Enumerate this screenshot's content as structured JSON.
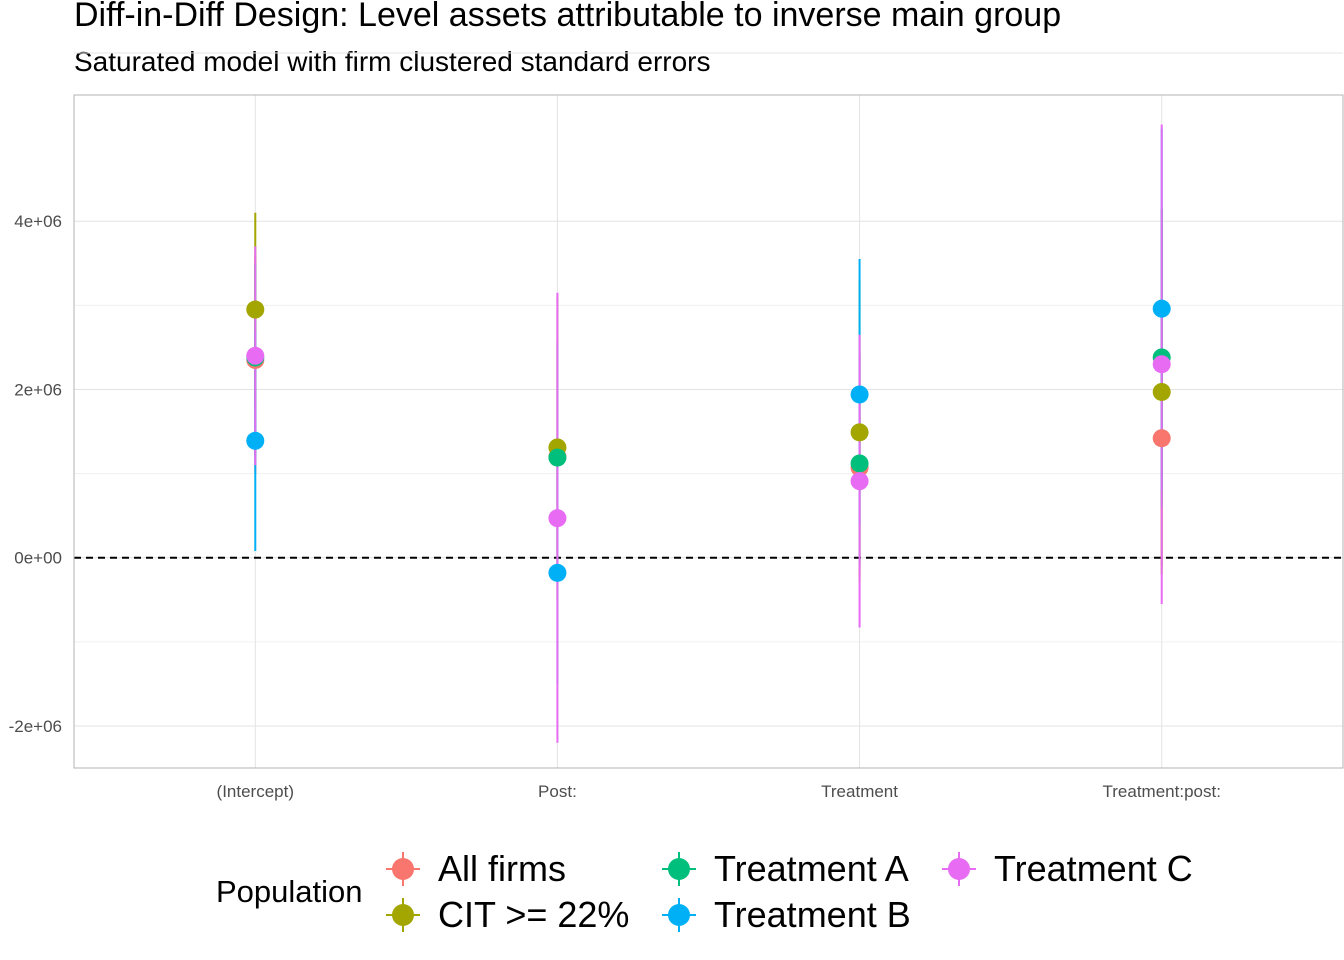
{
  "title": "Diff-in-Diff Design: Level assets attributable to inverse main group",
  "subtitle": "Saturated model with firm clustered standard errors",
  "legend": {
    "title": "Population",
    "items": [
      {
        "label": "All firms",
        "color": "#F8766D"
      },
      {
        "label": "CIT >= 22%",
        "color": "#A3A500"
      },
      {
        "label": "Treatment A",
        "color": "#00BF7D"
      },
      {
        "label": "Treatment B",
        "color": "#00B0F6"
      },
      {
        "label": "Treatment C",
        "color": "#E76BF3"
      }
    ]
  },
  "chart_data": {
    "type": "scatter",
    "title": "Diff-in-Diff Design: Level assets attributable to inverse main group",
    "subtitle": "Saturated model with firm clustered standard errors",
    "xlabel": "",
    "ylabel": "",
    "categories": [
      "(Intercept)",
      "Post:",
      "Treatment",
      "Treatment:post:"
    ],
    "ylim": [
      -2500000,
      5500000
    ],
    "yticks": [
      -2000000,
      0,
      2000000,
      4000000
    ],
    "ytick_labels": [
      "-2e+06",
      "0e+00",
      "2e+06",
      "4e+06"
    ],
    "reference_line": {
      "y": 0,
      "style": "dashed"
    },
    "grid": true,
    "legend_position": "bottom",
    "series": [
      {
        "name": "All firms",
        "color": "#F8766D",
        "estimate": [
          2350000,
          1200000,
          1070000,
          1420000
        ],
        "lower": [
          1000000,
          -150000,
          -200000,
          -100000
        ],
        "upper": [
          3600000,
          2600000,
          2450000,
          2900000
        ]
      },
      {
        "name": "CIT >= 22%",
        "color": "#A3A500",
        "estimate": [
          2950000,
          1310000,
          1490000,
          1970000
        ],
        "lower": [
          1800000,
          -500000,
          -300000,
          -200000
        ],
        "upper": [
          4100000,
          3100000,
          3300000,
          4150000
        ]
      },
      {
        "name": "Treatment A",
        "color": "#00BF7D",
        "estimate": [
          2380000,
          1190000,
          1120000,
          2380000
        ],
        "lower": [
          1200000,
          -200000,
          -100000,
          600000
        ],
        "upper": [
          3500000,
          2550000,
          2400000,
          4150000
        ]
      },
      {
        "name": "Treatment B",
        "color": "#00B0F6",
        "estimate": [
          1390000,
          -180000,
          1940000,
          2960000
        ],
        "lower": [
          80000,
          -1500000,
          400000,
          800000
        ],
        "upper": [
          2700000,
          1150000,
          3550000,
          5100000
        ]
      },
      {
        "name": "Treatment C",
        "color": "#E76BF3",
        "estimate": [
          2400000,
          470000,
          910000,
          2300000
        ],
        "lower": [
          1100000,
          -2200000,
          -830000,
          -550000
        ],
        "upper": [
          3700000,
          3150000,
          2650000,
          5150000
        ]
      }
    ]
  }
}
